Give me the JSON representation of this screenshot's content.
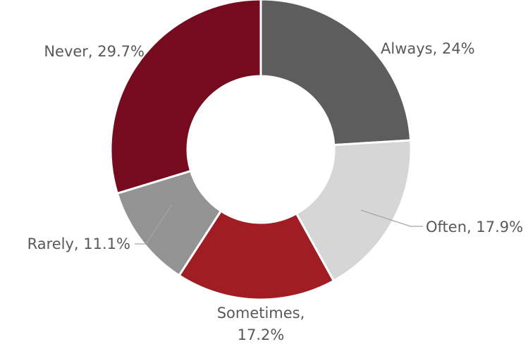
{
  "chart_data": {
    "type": "pie",
    "variant": "donut",
    "categories": [
      "Always",
      "Often",
      "Sometimes",
      "Rarely",
      "Never"
    ],
    "values": [
      24,
      17.9,
      17.2,
      11.1,
      29.7
    ],
    "unit": "%",
    "data_labels": [
      "Always, 24%",
      "Often, 17.9%",
      "Sometimes, 17.2%",
      "Rarely, 11.1%",
      "Never, 29.7%"
    ],
    "colors": [
      "#5d5d5d",
      "#d6d6d6",
      "#a11d24",
      "#939393",
      "#760b20"
    ],
    "label_color": "#595959",
    "leader_line_color": "#a6a6a6",
    "start_angle": "12 o'clock",
    "direction": "clockwise",
    "legend": "none",
    "title": ""
  }
}
